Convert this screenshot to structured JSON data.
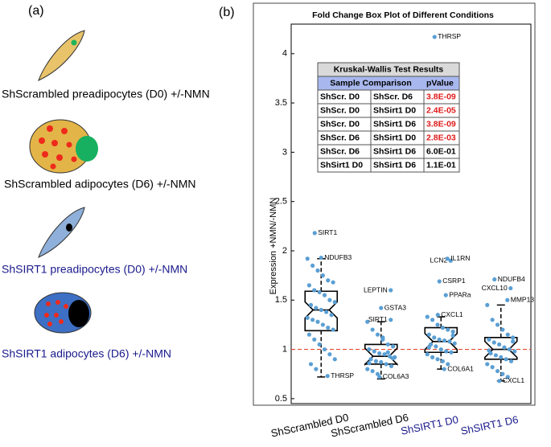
{
  "panel_a": {
    "label": "(a)",
    "captions": [
      {
        "text": "ShScrambled preadipocytes (D0) +/-NMN",
        "color": "#000000"
      },
      {
        "text": "ShScrambled adipocytes (D6) +/-NMN",
        "color": "#000000"
      },
      {
        "text": "ShSIRT1 preadipocytes (D0) +/-NMN",
        "color": "#1a1a8c"
      },
      {
        "text": "ShSIRT1 adipocytes (D6) +/-NMN",
        "color": "#1a1a8c"
      }
    ]
  },
  "chart_data": {
    "type": "box",
    "panel_label": "(b)",
    "title": "Fold Change Box Plot of Different Conditions",
    "ylabel": "Expression +NMN/-NMN",
    "categories": [
      "ShScrambled D0",
      "ShScrambled D6",
      "ShSIRT1 D0",
      "ShSIRT1 D6"
    ],
    "category_colors": [
      "#000000",
      "#000000",
      "#1a1a8c",
      "#1a1a8c"
    ],
    "point_color": "#5a9fd4",
    "reference_line": 1,
    "reference_color": "#e8452c",
    "ylim": [
      0.45,
      4.3
    ],
    "yticks": [
      0.5,
      1,
      1.5,
      2,
      2.5,
      3,
      3.5,
      4
    ],
    "boxes": [
      {
        "q1": 1.19,
        "median": 1.4,
        "q3": 1.59,
        "whisker_low": 0.72,
        "whisker_high": 1.92,
        "points": [
          1.92,
          1.85,
          1.8,
          1.75,
          1.7,
          1.68,
          1.65,
          1.6,
          1.58,
          1.55,
          1.5,
          1.48,
          1.45,
          1.42,
          1.4,
          1.38,
          1.35,
          1.32,
          1.3,
          1.28,
          1.25,
          1.22,
          1.2,
          1.15,
          1.1,
          1.05,
          1.0,
          0.95,
          0.9,
          0.85,
          0.8
        ],
        "labeled": [
          {
            "label": "SIRT1",
            "value": 2.18
          },
          {
            "label": "NDUFB3",
            "value": 1.93
          },
          {
            "label": "THRSP",
            "value": 0.73
          }
        ]
      },
      {
        "q1": 0.85,
        "median": 0.93,
        "q3": 1.05,
        "whisker_low": 0.7,
        "whisker_high": 1.28,
        "points": [
          1.28,
          1.2,
          1.15,
          1.1,
          1.05,
          1.03,
          1.0,
          0.98,
          0.96,
          0.95,
          0.93,
          0.92,
          0.9,
          0.88,
          0.87,
          0.85,
          0.83,
          0.8,
          0.78,
          0.75,
          1.12,
          0.97,
          0.91,
          0.86
        ],
        "labeled": [
          {
            "label": "LEPTIN",
            "value": 1.6
          },
          {
            "label": "GSTA3",
            "value": 1.42
          },
          {
            "label": "SIRT1",
            "value": 1.3
          },
          {
            "label": "COL6A3",
            "value": 0.72
          }
        ]
      },
      {
        "q1": 0.97,
        "median": 1.08,
        "q3": 1.22,
        "whisker_low": 0.8,
        "whisker_high": 1.33,
        "points": [
          1.33,
          1.3,
          1.25,
          1.22,
          1.2,
          1.18,
          1.15,
          1.12,
          1.1,
          1.09,
          1.08,
          1.06,
          1.05,
          1.03,
          1.0,
          0.98,
          0.97,
          0.95,
          0.92,
          0.9,
          0.88,
          0.85,
          1.14,
          1.02
        ],
        "labeled": [
          {
            "label": "THRSP",
            "value": 4.17
          },
          {
            "label": "LCN2",
            "value": 1.9
          },
          {
            "label": "IL1RN",
            "value": 1.92
          },
          {
            "label": "CSRP1",
            "value": 1.69
          },
          {
            "label": "PPARa",
            "value": 1.55
          },
          {
            "label": "CXCL1",
            "value": 1.35
          },
          {
            "label": "COL6A1",
            "value": 0.8
          }
        ]
      },
      {
        "q1": 0.9,
        "median": 1.0,
        "q3": 1.12,
        "whisker_low": 0.68,
        "whisker_high": 1.45,
        "points": [
          1.45,
          1.3,
          1.25,
          1.2,
          1.15,
          1.12,
          1.1,
          1.07,
          1.05,
          1.02,
          1.0,
          0.98,
          0.96,
          0.94,
          0.92,
          0.9,
          0.88,
          0.85,
          0.82,
          0.78,
          0.75,
          0.72,
          1.08,
          0.99
        ],
        "labeled": [
          {
            "label": "NDUFB4",
            "value": 1.71
          },
          {
            "label": "CXCL10",
            "value": 1.62
          },
          {
            "label": "MMP13",
            "value": 1.5
          },
          {
            "label": "CXCL1",
            "value": 0.68
          }
        ]
      }
    ],
    "table": {
      "title": "Kruskal-Wallis Test Results",
      "headers": [
        "Sample Comparison",
        "pValue"
      ],
      "rows": [
        [
          "ShScr. D0",
          "ShScr. D6",
          "3.8E-09"
        ],
        [
          "ShScr. D0",
          "ShSirt1 D0",
          "2.4E-05"
        ],
        [
          "ShScr. D0",
          "ShSirt1 D6",
          "3.8E-09"
        ],
        [
          "ShScr. D6",
          "ShSirt1 D0",
          "2.8E-03"
        ],
        [
          "ShScr. D6",
          "ShSirt1 D6",
          "6.0E-01"
        ],
        [
          "ShSirt1 D0",
          "ShSirt1 D6",
          "1.1E-01"
        ]
      ],
      "significant": [
        true,
        true,
        true,
        true,
        false,
        false
      ],
      "significant_color": "#e01b1b"
    }
  }
}
